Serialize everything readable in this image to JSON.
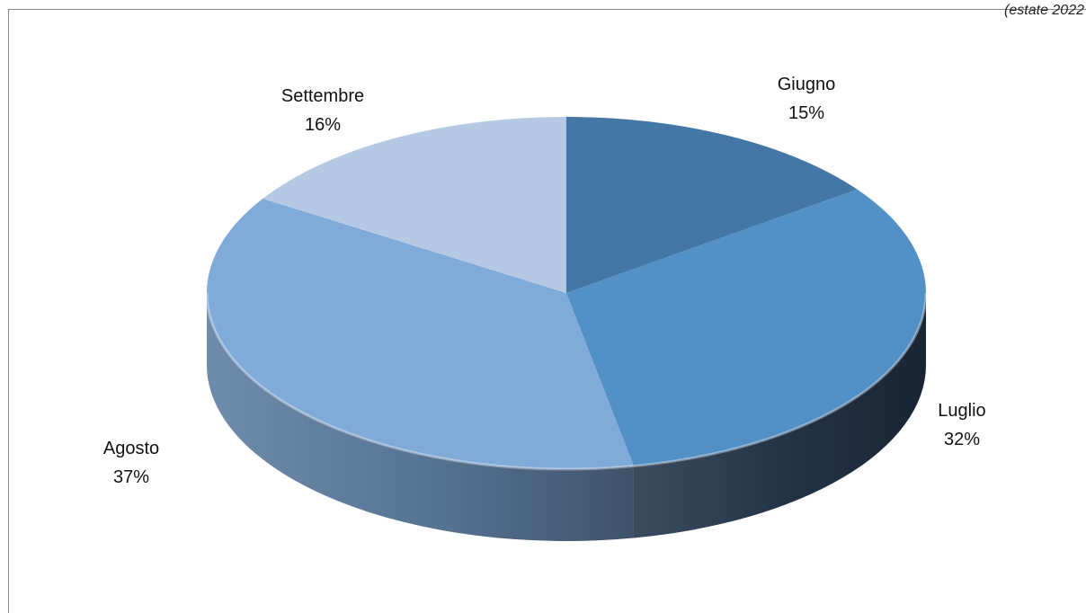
{
  "corner_note": "(estate 2022",
  "chart_data": {
    "type": "pie",
    "title": "",
    "categories": [
      "Giugno",
      "Luglio",
      "Agosto",
      "Settembre"
    ],
    "values": [
      15,
      32,
      37,
      16
    ],
    "labels": [
      "15%",
      "32%",
      "37%",
      "16%"
    ],
    "colors": [
      "#4577a6",
      "#5290c6",
      "#80aad8",
      "#b6c9e4"
    ],
    "side_colors": [
      "#34587c",
      "#26384e",
      "#5f7fa2",
      "#8597ad"
    ],
    "legend": "none",
    "style": "3d"
  }
}
